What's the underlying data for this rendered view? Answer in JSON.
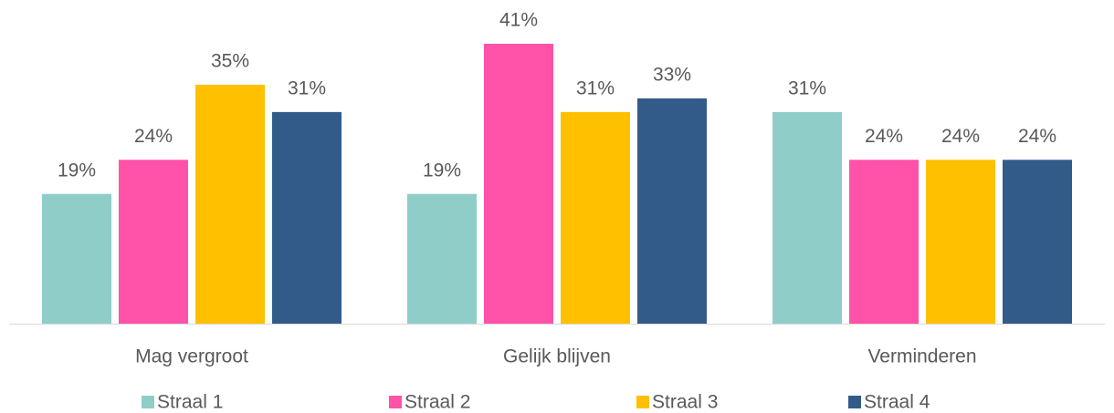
{
  "chart_data": {
    "type": "bar",
    "categories": [
      "Mag vergroot",
      "Gelijk blijven",
      "Verminderen"
    ],
    "series": [
      {
        "name": "Straal 1",
        "color": "#8ecdc8",
        "values": [
          19,
          19,
          31
        ],
        "value_labels": [
          "19%",
          "19%",
          "31%"
        ]
      },
      {
        "name": "Straal 2",
        "color": "#ff52a8",
        "values": [
          24,
          41,
          24
        ],
        "value_labels": [
          "24%",
          "41%",
          "24%"
        ]
      },
      {
        "name": "Straal 3",
        "color": "#ffc000",
        "values": [
          35,
          31,
          24
        ],
        "value_labels": [
          "35%",
          "31%",
          "24%"
        ]
      },
      {
        "name": "Straal 4",
        "color": "#335b8a",
        "values": [
          31,
          33,
          24
        ],
        "value_labels": [
          "31%",
          "33%",
          "24%"
        ]
      }
    ],
    "legend": "bottom"
  }
}
